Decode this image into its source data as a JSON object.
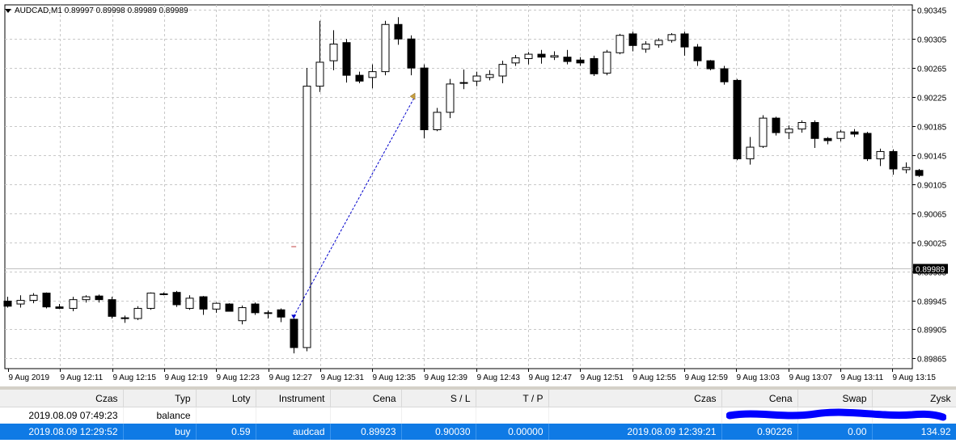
{
  "chart": {
    "title": "AUDCAD,M1  0.89997 0.89998 0.89989 0.89989",
    "current_price": "0.89989",
    "colors": {
      "bull": "#ffffff",
      "bear": "#000000",
      "grid": "#c8c8c8",
      "trade_line": "#0000cc",
      "entry": "#0000cc",
      "exit": "#c8a040",
      "price_label_bg": "#000000",
      "price_line": "#c0c0c0"
    },
    "price_labels": [
      "0.90345",
      "0.90305",
      "0.90265",
      "0.90225",
      "0.90185",
      "0.90145",
      "0.90105",
      "0.90065",
      "0.90025",
      "0.89985",
      "0.89945",
      "0.89905",
      "0.89865"
    ],
    "price_range": [
      0.89851,
      0.90352
    ],
    "time_labels": [
      "9 Aug 2019",
      "9 Aug 12:11",
      "9 Aug 12:15",
      "9 Aug 12:19",
      "9 Aug 12:23",
      "9 Aug 12:27",
      "9 Aug 12:31",
      "9 Aug 12:35",
      "9 Aug 12:39",
      "9 Aug 12:43",
      "9 Aug 12:47",
      "9 Aug 12:51",
      "9 Aug 12:55",
      "9 Aug 12:59",
      "9 Aug 13:03",
      "9 Aug 13:07",
      "9 Aug 13:11",
      "9 Aug 13:15"
    ],
    "candles": [
      {
        "o": 0.89944,
        "h": 0.8995,
        "l": 0.89935,
        "c": 0.89937
      },
      {
        "o": 0.8994,
        "h": 0.89952,
        "l": 0.89935,
        "c": 0.89945
      },
      {
        "o": 0.89945,
        "h": 0.89955,
        "l": 0.89941,
        "c": 0.89952
      },
      {
        "o": 0.89955,
        "h": 0.89956,
        "l": 0.89934,
        "c": 0.89936
      },
      {
        "o": 0.89936,
        "h": 0.8994,
        "l": 0.89933,
        "c": 0.89934
      },
      {
        "o": 0.89934,
        "h": 0.8995,
        "l": 0.8993,
        "c": 0.89946
      },
      {
        "o": 0.89946,
        "h": 0.89952,
        "l": 0.89942,
        "c": 0.8995
      },
      {
        "o": 0.89951,
        "h": 0.89953,
        "l": 0.89942,
        "c": 0.89946
      },
      {
        "o": 0.89946,
        "h": 0.8995,
        "l": 0.8992,
        "c": 0.89923
      },
      {
        "o": 0.89921,
        "h": 0.89924,
        "l": 0.89914,
        "c": 0.8992
      },
      {
        "o": 0.8992,
        "h": 0.89937,
        "l": 0.89918,
        "c": 0.89934
      },
      {
        "o": 0.89934,
        "h": 0.89956,
        "l": 0.89932,
        "c": 0.89955
      },
      {
        "o": 0.89954,
        "h": 0.89956,
        "l": 0.89952,
        "c": 0.89953
      },
      {
        "o": 0.89956,
        "h": 0.89958,
        "l": 0.89936,
        "c": 0.89939
      },
      {
        "o": 0.89934,
        "h": 0.89952,
        "l": 0.89932,
        "c": 0.89948
      },
      {
        "o": 0.8995,
        "h": 0.89951,
        "l": 0.89925,
        "c": 0.89933
      },
      {
        "o": 0.89933,
        "h": 0.89942,
        "l": 0.89928,
        "c": 0.89941
      },
      {
        "o": 0.8994,
        "h": 0.89941,
        "l": 0.8993,
        "c": 0.8993
      },
      {
        "o": 0.89917,
        "h": 0.89938,
        "l": 0.89912,
        "c": 0.89935
      },
      {
        "o": 0.8994,
        "h": 0.89942,
        "l": 0.89925,
        "c": 0.89928
      },
      {
        "o": 0.89928,
        "h": 0.89931,
        "l": 0.8992,
        "c": 0.89927
      },
      {
        "o": 0.89932,
        "h": 0.89934,
        "l": 0.89915,
        "c": 0.89922
      },
      {
        "o": 0.89919,
        "h": 0.8992,
        "l": 0.89872,
        "c": 0.8988
      },
      {
        "o": 0.8988,
        "h": 0.90265,
        "l": 0.89875,
        "c": 0.9024
      },
      {
        "o": 0.9024,
        "h": 0.9033,
        "l": 0.90232,
        "c": 0.90273
      },
      {
        "o": 0.90275,
        "h": 0.90317,
        "l": 0.90262,
        "c": 0.90298
      },
      {
        "o": 0.903,
        "h": 0.90305,
        "l": 0.90245,
        "c": 0.90255
      },
      {
        "o": 0.90255,
        "h": 0.9026,
        "l": 0.90244,
        "c": 0.90247
      },
      {
        "o": 0.90252,
        "h": 0.9027,
        "l": 0.90237,
        "c": 0.9026
      },
      {
        "o": 0.9026,
        "h": 0.9033,
        "l": 0.90255,
        "c": 0.90325
      },
      {
        "o": 0.90325,
        "h": 0.90335,
        "l": 0.90297,
        "c": 0.90305
      },
      {
        "o": 0.90305,
        "h": 0.9031,
        "l": 0.90255,
        "c": 0.90265
      },
      {
        "o": 0.90265,
        "h": 0.9027,
        "l": 0.90168,
        "c": 0.9018
      },
      {
        "o": 0.9018,
        "h": 0.9021,
        "l": 0.90178,
        "c": 0.90204
      },
      {
        "o": 0.90204,
        "h": 0.9025,
        "l": 0.90196,
        "c": 0.90243
      },
      {
        "o": 0.90245,
        "h": 0.90263,
        "l": 0.90236,
        "c": 0.90245
      },
      {
        "o": 0.90247,
        "h": 0.9026,
        "l": 0.9024,
        "c": 0.90254
      },
      {
        "o": 0.90252,
        "h": 0.90262,
        "l": 0.90248,
        "c": 0.90256
      },
      {
        "o": 0.90254,
        "h": 0.90275,
        "l": 0.90244,
        "c": 0.9027
      },
      {
        "o": 0.90272,
        "h": 0.90283,
        "l": 0.90268,
        "c": 0.90279
      },
      {
        "o": 0.90278,
        "h": 0.90287,
        "l": 0.9027,
        "c": 0.90284
      },
      {
        "o": 0.90284,
        "h": 0.9029,
        "l": 0.90271,
        "c": 0.9028
      },
      {
        "o": 0.9028,
        "h": 0.90288,
        "l": 0.90276,
        "c": 0.90282
      },
      {
        "o": 0.9028,
        "h": 0.9029,
        "l": 0.9027,
        "c": 0.90274
      },
      {
        "o": 0.90276,
        "h": 0.9028,
        "l": 0.90268,
        "c": 0.90272
      },
      {
        "o": 0.90278,
        "h": 0.90282,
        "l": 0.90254,
        "c": 0.90257
      },
      {
        "o": 0.90258,
        "h": 0.9029,
        "l": 0.90255,
        "c": 0.90287
      },
      {
        "o": 0.90286,
        "h": 0.90312,
        "l": 0.90284,
        "c": 0.9031
      },
      {
        "o": 0.90312,
        "h": 0.90315,
        "l": 0.90288,
        "c": 0.90296
      },
      {
        "o": 0.90291,
        "h": 0.90302,
        "l": 0.90286,
        "c": 0.90298
      },
      {
        "o": 0.90297,
        "h": 0.90306,
        "l": 0.90293,
        "c": 0.90303
      },
      {
        "o": 0.90303,
        "h": 0.90313,
        "l": 0.903,
        "c": 0.90311
      },
      {
        "o": 0.90312,
        "h": 0.90315,
        "l": 0.90282,
        "c": 0.90294
      },
      {
        "o": 0.90294,
        "h": 0.90298,
        "l": 0.90268,
        "c": 0.90275
      },
      {
        "o": 0.90275,
        "h": 0.90276,
        "l": 0.90262,
        "c": 0.90264
      },
      {
        "o": 0.90264,
        "h": 0.90268,
        "l": 0.90242,
        "c": 0.90246
      },
      {
        "o": 0.90248,
        "h": 0.9025,
        "l": 0.90138,
        "c": 0.9014
      },
      {
        "o": 0.9014,
        "h": 0.9017,
        "l": 0.90132,
        "c": 0.90156
      },
      {
        "o": 0.90157,
        "h": 0.902,
        "l": 0.90155,
        "c": 0.90196
      },
      {
        "o": 0.90196,
        "h": 0.90198,
        "l": 0.90172,
        "c": 0.90176
      },
      {
        "o": 0.90176,
        "h": 0.90186,
        "l": 0.90167,
        "c": 0.90181
      },
      {
        "o": 0.90181,
        "h": 0.90193,
        "l": 0.90176,
        "c": 0.9019
      },
      {
        "o": 0.9019,
        "h": 0.90193,
        "l": 0.90155,
        "c": 0.90168
      },
      {
        "o": 0.90168,
        "h": 0.9017,
        "l": 0.9016,
        "c": 0.90165
      },
      {
        "o": 0.90168,
        "h": 0.9018,
        "l": 0.90164,
        "c": 0.90177
      },
      {
        "o": 0.90177,
        "h": 0.90181,
        "l": 0.9017,
        "c": 0.90174
      },
      {
        "o": 0.90175,
        "h": 0.90177,
        "l": 0.90137,
        "c": 0.9014
      },
      {
        "o": 0.9014,
        "h": 0.90154,
        "l": 0.9013,
        "c": 0.9015
      },
      {
        "o": 0.9015,
        "h": 0.90153,
        "l": 0.90118,
        "c": 0.90126
      },
      {
        "o": 0.90125,
        "h": 0.90135,
        "l": 0.9012,
        "c": 0.90128
      },
      {
        "o": 0.90124,
        "h": 0.90126,
        "l": 0.90115,
        "c": 0.90117
      }
    ],
    "trade": {
      "entry_index": 22,
      "entry_price": 0.89923,
      "exit_index": 31,
      "exit_price": 0.90226,
      "marker_index": 22,
      "marker_price": 0.90019
    }
  },
  "terminal": {
    "columns": [
      "Czas",
      "Typ",
      "Loty",
      "Instrument",
      "Cena",
      "S / L",
      "T / P",
      "Czas",
      "Cena",
      "Swap",
      "Zysk"
    ],
    "rows": [
      {
        "type": "balance",
        "cells": [
          "2019.08.09 07:49:23",
          "balance",
          "",
          "",
          "",
          "",
          "",
          "",
          "",
          "",
          ""
        ]
      },
      {
        "type": "buy",
        "cells": [
          "2019.08.09 12:29:52",
          "buy",
          "0.59",
          "audcad",
          "0.89923",
          "0.90030",
          "0.00000",
          "2019.08.09 12:39:21",
          "0.90226",
          "0.00",
          "134.92"
        ]
      }
    ],
    "redaction_color": "#0000ff"
  }
}
